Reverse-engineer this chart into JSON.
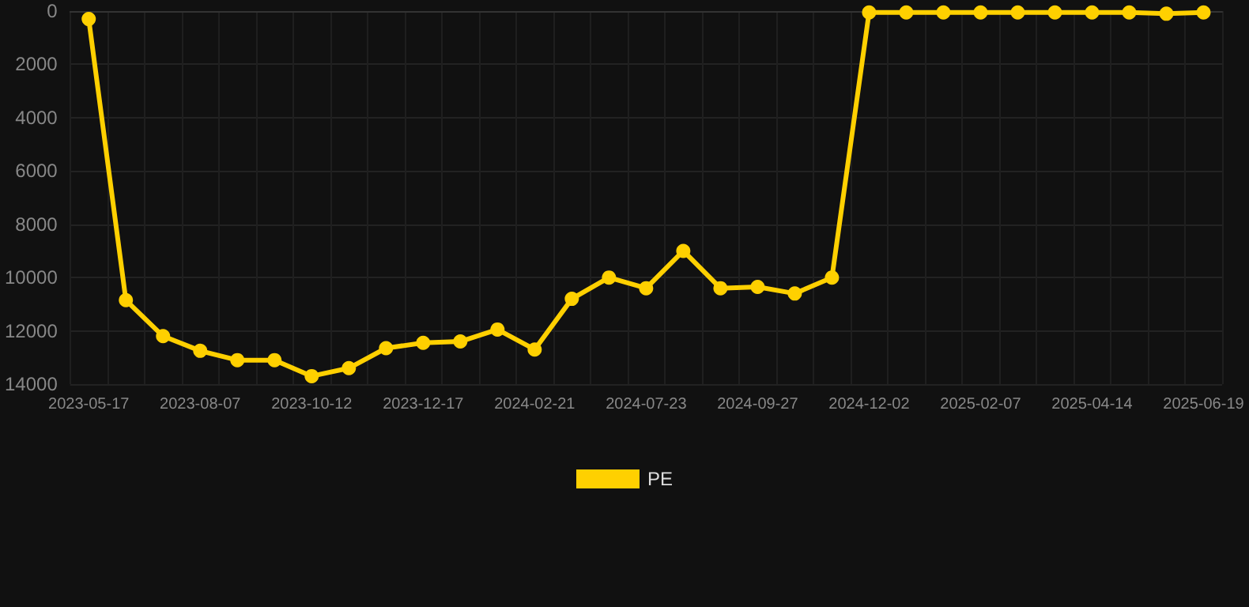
{
  "chart_data": {
    "type": "line",
    "categories": [
      "2023-05-17",
      null,
      null,
      "2023-08-07",
      null,
      null,
      "2023-10-12",
      null,
      null,
      "2023-12-17",
      null,
      null,
      "2024-02-21",
      null,
      null,
      "2024-07-23",
      null,
      null,
      "2024-09-27",
      null,
      null,
      "2024-12-02",
      null,
      null,
      "2025-02-07",
      null,
      null,
      "2025-04-14",
      null,
      null,
      "2025-06-19"
    ],
    "series": [
      {
        "name": "PE",
        "color": "#ffd000",
        "values": [
          300,
          10850,
          12200,
          12750,
          13100,
          13100,
          13700,
          13400,
          12650,
          12450,
          12400,
          11950,
          12700,
          10800,
          10000,
          10400,
          9000,
          10400,
          10350,
          10600,
          10000,
          50,
          50,
          50,
          50,
          50,
          50,
          50,
          50,
          100,
          50
        ]
      }
    ],
    "ylim": [
      14000,
      0
    ],
    "yticks": [
      0,
      2000,
      4000,
      6000,
      8000,
      10000,
      12000,
      14000
    ],
    "grid": true,
    "legend": "bottom",
    "marker": "circle",
    "line_style": "solid"
  }
}
